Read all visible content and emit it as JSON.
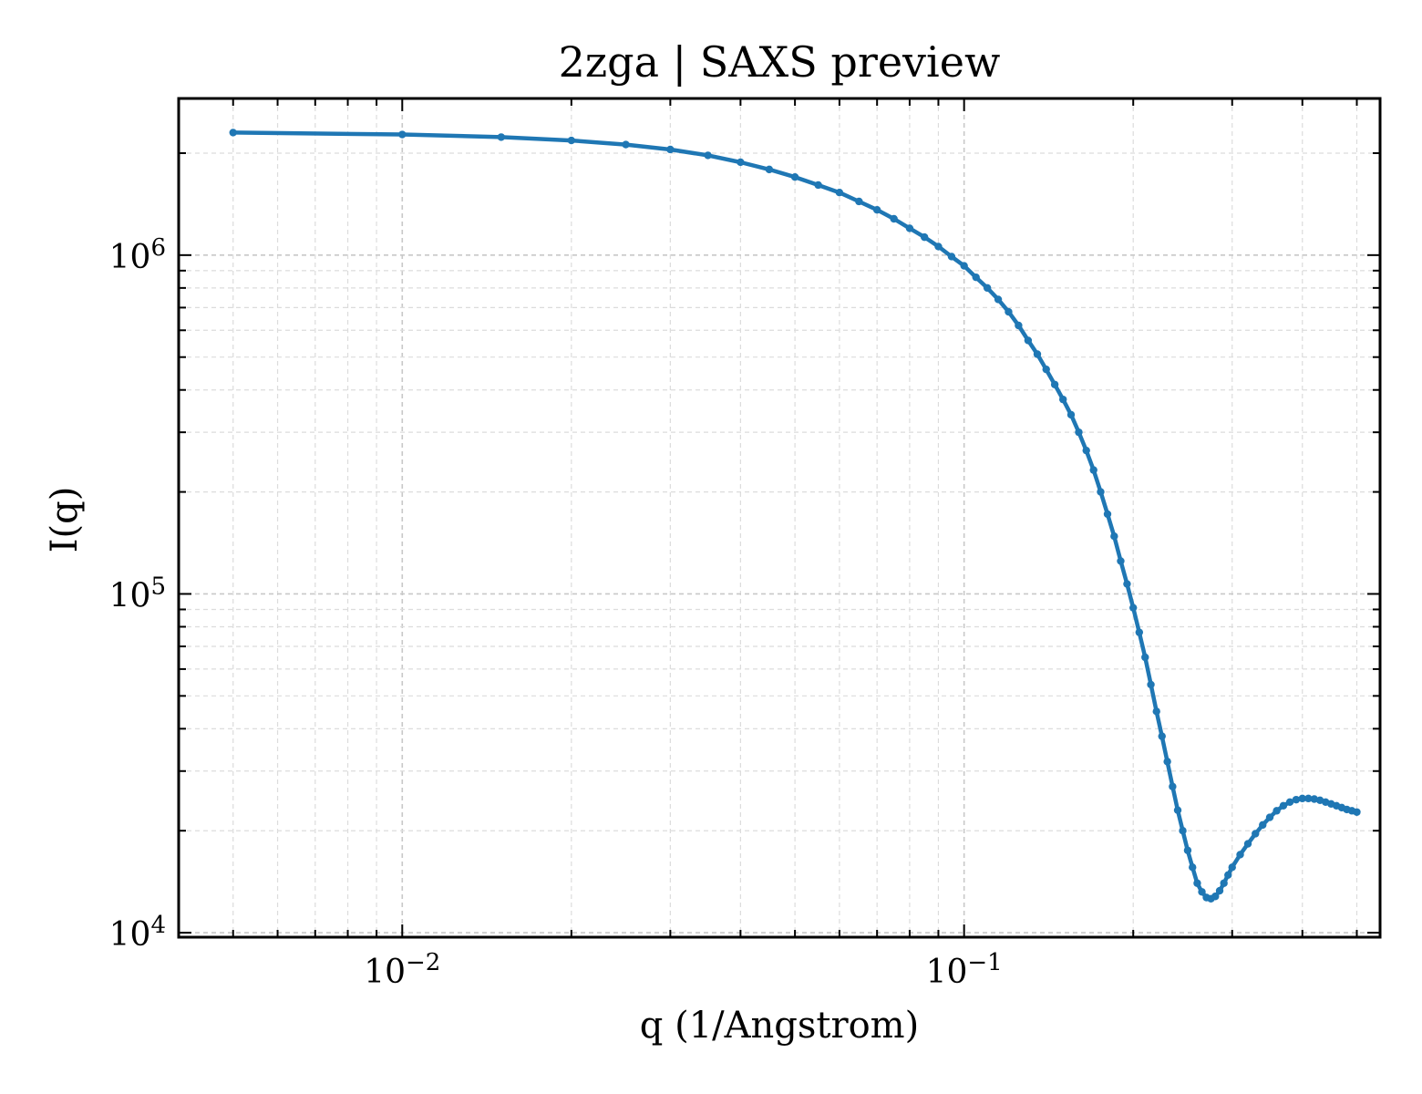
{
  "chart_data": {
    "type": "line",
    "title": "2zga | SAXS preview",
    "xlabel": "q (1/Angstrom)",
    "ylabel": "I(q)",
    "xscale": "log",
    "yscale": "log",
    "xlim": [
      0.004,
      0.55
    ],
    "ylim": [
      9700,
      2900000
    ],
    "grid": true,
    "legend": "none",
    "x_ticks": [
      {
        "value": 0.01,
        "base": "10",
        "exp": "−2"
      },
      {
        "value": 0.1,
        "base": "10",
        "exp": "−1"
      }
    ],
    "y_ticks": [
      {
        "value": 10000,
        "base": "10",
        "exp": "4"
      },
      {
        "value": 100000,
        "base": "10",
        "exp": "5"
      },
      {
        "value": 1000000,
        "base": "10",
        "exp": "6"
      }
    ],
    "series": [
      {
        "color": "#1f77b4",
        "x": [
          0.005,
          0.01,
          0.015,
          0.02,
          0.025,
          0.03,
          0.035,
          0.04,
          0.045,
          0.05,
          0.055,
          0.06,
          0.065,
          0.07,
          0.075,
          0.08,
          0.085,
          0.09,
          0.095,
          0.1,
          0.105,
          0.11,
          0.115,
          0.12,
          0.125,
          0.13,
          0.135,
          0.14,
          0.145,
          0.15,
          0.155,
          0.16,
          0.165,
          0.17,
          0.175,
          0.18,
          0.185,
          0.19,
          0.195,
          0.2,
          0.205,
          0.21,
          0.215,
          0.22,
          0.225,
          0.23,
          0.235,
          0.24,
          0.245,
          0.25,
          0.255,
          0.26,
          0.265,
          0.27,
          0.275,
          0.28,
          0.285,
          0.29,
          0.295,
          0.3,
          0.31,
          0.32,
          0.33,
          0.34,
          0.35,
          0.36,
          0.37,
          0.38,
          0.39,
          0.4,
          0.41,
          0.42,
          0.43,
          0.44,
          0.45,
          0.46,
          0.47,
          0.48,
          0.49,
          0.5
        ],
        "y": [
          2300000,
          2270000,
          2230000,
          2180000,
          2120000,
          2050000,
          1970000,
          1880000,
          1790000,
          1700000,
          1610000,
          1530000,
          1440000,
          1360000,
          1280000,
          1200000,
          1130000,
          1060000,
          990000,
          930000,
          860000,
          800000,
          740000,
          680000,
          620000,
          560000,
          510000,
          460000,
          415000,
          375000,
          338000,
          300000,
          265000,
          232000,
          200000,
          172000,
          148000,
          125000,
          107000,
          91000,
          77000,
          65000,
          54000,
          45000,
          38000,
          32000,
          27000,
          23000,
          20000,
          17500,
          15600,
          14000,
          13200,
          12700,
          12600,
          12800,
          13300,
          14000,
          14800,
          15600,
          17000,
          18300,
          19600,
          20800,
          21900,
          22900,
          23700,
          24300,
          24700,
          24900,
          24900,
          24800,
          24600,
          24300,
          24000,
          23700,
          23400,
          23100,
          22900,
          22700
        ]
      }
    ]
  }
}
